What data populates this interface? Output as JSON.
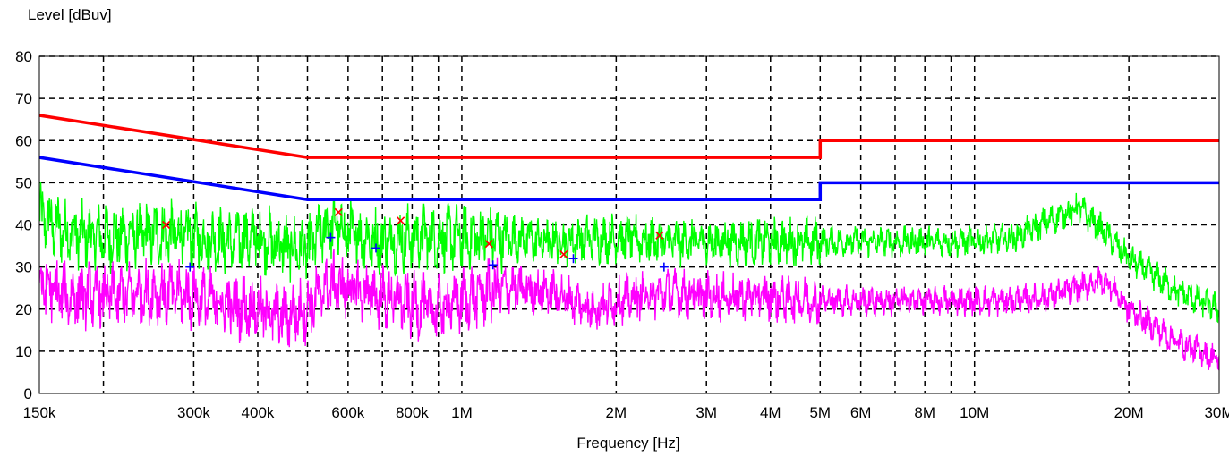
{
  "chart_data": {
    "type": "line",
    "ylabel": "Level [dBuv]",
    "xlabel": "Frequency [Hz]",
    "x_scale": "log",
    "xlim": [
      150000,
      30000000
    ],
    "ylim": [
      0,
      80
    ],
    "grid": true,
    "x_ticks": [
      {
        "value": 150000,
        "label": "150k"
      },
      {
        "value": 200000,
        "label": ""
      },
      {
        "value": 300000,
        "label": "300k"
      },
      {
        "value": 400000,
        "label": "400k"
      },
      {
        "value": 500000,
        "label": ""
      },
      {
        "value": 600000,
        "label": "600k"
      },
      {
        "value": 700000,
        "label": ""
      },
      {
        "value": 800000,
        "label": "800k"
      },
      {
        "value": 900000,
        "label": ""
      },
      {
        "value": 1000000,
        "label": "1M"
      },
      {
        "value": 2000000,
        "label": "2M"
      },
      {
        "value": 3000000,
        "label": "3M"
      },
      {
        "value": 4000000,
        "label": "4M"
      },
      {
        "value": 5000000,
        "label": "5M"
      },
      {
        "value": 6000000,
        "label": "6M"
      },
      {
        "value": 7000000,
        "label": ""
      },
      {
        "value": 8000000,
        "label": "8M"
      },
      {
        "value": 9000000,
        "label": ""
      },
      {
        "value": 10000000,
        "label": "10M"
      },
      {
        "value": 20000000,
        "label": "20M"
      },
      {
        "value": 30000000,
        "label": "30M"
      }
    ],
    "y_ticks": [
      0,
      10,
      20,
      30,
      40,
      50,
      60,
      70,
      80
    ],
    "limit_lines": [
      {
        "color": "#ff0000",
        "points": [
          [
            150000,
            66
          ],
          [
            500000,
            56
          ],
          [
            5000000,
            56
          ],
          [
            5000000,
            60
          ],
          [
            30000000,
            60
          ]
        ]
      },
      {
        "color": "#0000ff",
        "points": [
          [
            150000,
            56
          ],
          [
            500000,
            46
          ],
          [
            5000000,
            46
          ],
          [
            5000000,
            50
          ],
          [
            30000000,
            50
          ]
        ]
      }
    ],
    "traces": [
      {
        "color": "#00ff00",
        "points": [
          [
            150000,
            42
          ],
          [
            170000,
            38
          ],
          [
            200000,
            37
          ],
          [
            250000,
            38
          ],
          [
            300000,
            37
          ],
          [
            350000,
            36
          ],
          [
            400000,
            37
          ],
          [
            450000,
            35
          ],
          [
            500000,
            34
          ],
          [
            550000,
            40
          ],
          [
            600000,
            38
          ],
          [
            700000,
            36
          ],
          [
            800000,
            37
          ],
          [
            1000000,
            37
          ],
          [
            1200000,
            37
          ],
          [
            1500000,
            36
          ],
          [
            2000000,
            37
          ],
          [
            2500000,
            36
          ],
          [
            3000000,
            36
          ],
          [
            4000000,
            36
          ],
          [
            5000000,
            36
          ],
          [
            6000000,
            36
          ],
          [
            8000000,
            36
          ],
          [
            10000000,
            36
          ],
          [
            12000000,
            37
          ],
          [
            14000000,
            41
          ],
          [
            16000000,
            44
          ],
          [
            18000000,
            38
          ],
          [
            20000000,
            32
          ],
          [
            25000000,
            24
          ],
          [
            30000000,
            20
          ]
        ]
      },
      {
        "color": "#ff00ff",
        "points": [
          [
            150000,
            26
          ],
          [
            170000,
            23
          ],
          [
            200000,
            23
          ],
          [
            250000,
            24
          ],
          [
            300000,
            23
          ],
          [
            350000,
            21
          ],
          [
            400000,
            20
          ],
          [
            450000,
            18
          ],
          [
            500000,
            20
          ],
          [
            550000,
            26
          ],
          [
            600000,
            25
          ],
          [
            700000,
            23
          ],
          [
            800000,
            21
          ],
          [
            900000,
            20
          ],
          [
            1000000,
            22
          ],
          [
            1200000,
            25
          ],
          [
            1500000,
            24
          ],
          [
            1800000,
            20
          ],
          [
            2000000,
            22
          ],
          [
            2500000,
            24
          ],
          [
            3000000,
            23
          ],
          [
            4000000,
            23
          ],
          [
            5000000,
            22
          ],
          [
            6000000,
            22
          ],
          [
            8000000,
            22
          ],
          [
            10000000,
            22
          ],
          [
            12000000,
            22
          ],
          [
            14000000,
            23
          ],
          [
            16000000,
            25
          ],
          [
            18000000,
            27
          ],
          [
            20000000,
            20
          ],
          [
            25000000,
            12
          ],
          [
            30000000,
            8
          ]
        ]
      }
    ],
    "markers_x": {
      "color": "#ff0000",
      "points": [
        [
          265000,
          40
        ],
        [
          575000,
          43
        ],
        [
          760000,
          41
        ],
        [
          1130000,
          35.5
        ],
        [
          1580000,
          33
        ],
        [
          2430000,
          37.5
        ]
      ]
    },
    "markers_plus": {
      "color": "#0000ff",
      "points": [
        [
          295000,
          30
        ],
        [
          555000,
          37
        ],
        [
          680000,
          34.5
        ],
        [
          1150000,
          30.5
        ],
        [
          1650000,
          32
        ],
        [
          2480000,
          30
        ]
      ]
    }
  }
}
